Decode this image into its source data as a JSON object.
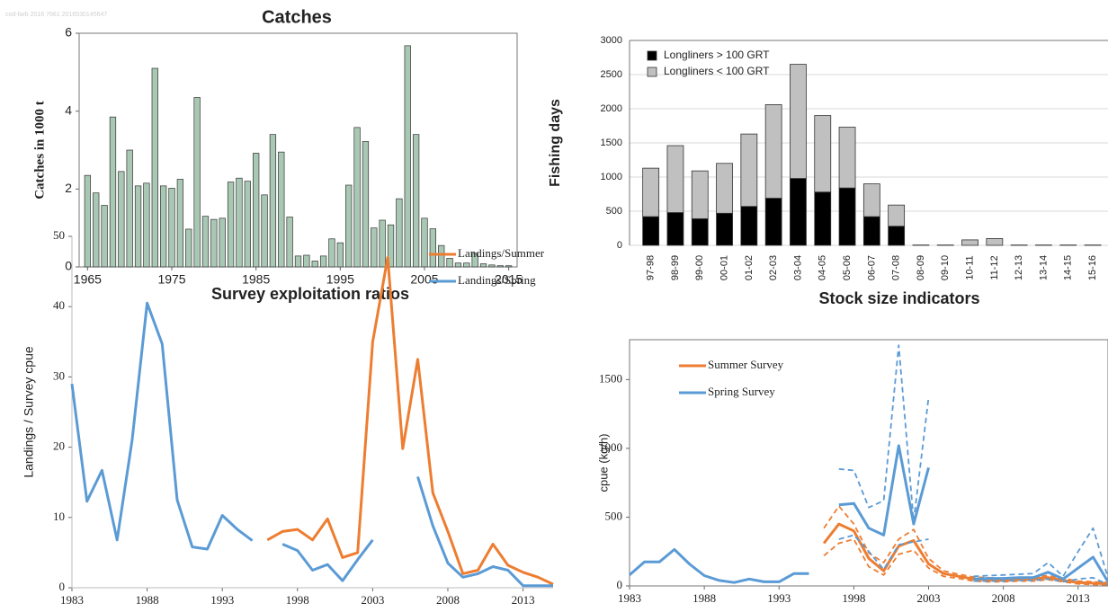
{
  "watermark": "cod-farb 2016 7661 2016530145647",
  "chart_data": [
    {
      "type": "bar",
      "title": "Catches",
      "y_label": "Catches in 1000 t",
      "x": [
        1965,
        1966,
        1967,
        1968,
        1969,
        1970,
        1971,
        1972,
        1973,
        1974,
        1975,
        1976,
        1977,
        1978,
        1979,
        1980,
        1981,
        1982,
        1983,
        1984,
        1985,
        1986,
        1987,
        1988,
        1989,
        1990,
        1991,
        1992,
        1993,
        1994,
        1995,
        1996,
        1997,
        1998,
        1999,
        2000,
        2001,
        2002,
        2003,
        2004,
        2005,
        2006,
        2007,
        2008,
        2009,
        2010,
        2011,
        2012,
        2013,
        2014,
        2015
      ],
      "values": [
        2.35,
        1.9,
        1.58,
        3.85,
        2.45,
        3.0,
        2.08,
        2.15,
        5.1,
        2.08,
        2.02,
        2.25,
        0.97,
        4.35,
        1.3,
        1.22,
        1.25,
        2.18,
        2.28,
        2.2,
        2.92,
        1.85,
        3.4,
        2.95,
        1.28,
        0.28,
        0.3,
        0.15,
        0.28,
        0.72,
        0.62,
        2.1,
        3.58,
        3.22,
        1.0,
        1.2,
        1.08,
        1.75,
        5.68,
        3.4,
        1.25,
        0.98,
        0.55,
        0.22,
        0.1,
        0.1,
        0.35,
        0.08,
        0.05,
        0.03,
        0.03
      ],
      "color": "#a8c8b4",
      "xlim": [
        1964,
        2016
      ],
      "xticks": [
        1965,
        1975,
        1985,
        1995,
        2005,
        2015
      ],
      "ylim": [
        0,
        6
      ],
      "yticks": [
        0,
        2,
        4,
        6
      ],
      "grid": false
    },
    {
      "type": "bar",
      "stacked": true,
      "y_label": "Fishing days",
      "categories": [
        "97-98",
        "98-99",
        "99-00",
        "00-01",
        "01-02",
        "02-03",
        "03-04",
        "04-05",
        "05-06",
        "06-07",
        "07-08",
        "08-09",
        "09-10",
        "10-11",
        "11-12",
        "12-13",
        "13-14",
        "14-15",
        "15-16"
      ],
      "series": [
        {
          "name": "Longliners > 100 GRT",
          "color": "#000000",
          "values": [
            420,
            480,
            390,
            470,
            570,
            690,
            980,
            780,
            840,
            420,
            280,
            0,
            0,
            0,
            0,
            0,
            0,
            0,
            0
          ]
        },
        {
          "name": "Longliners < 100 GRT",
          "color": "#c0c0c0",
          "values": [
            710,
            980,
            700,
            730,
            1060,
            1370,
            1670,
            1120,
            890,
            480,
            310,
            5,
            5,
            80,
            100,
            5,
            5,
            5,
            5
          ]
        }
      ],
      "ylim": [
        0,
        3000
      ],
      "yticks": [
        0,
        500,
        1000,
        1500,
        2000,
        2500,
        3000
      ],
      "grid": true,
      "legend": "upper left"
    },
    {
      "type": "line",
      "title": "Survey exploitation ratios",
      "y_label": "Landings / Survey cpue",
      "x": [
        1983,
        1984,
        1985,
        1986,
        1987,
        1988,
        1989,
        1990,
        1991,
        1992,
        1993,
        1994,
        1995,
        1996,
        1997,
        1998,
        1999,
        2000,
        2001,
        2002,
        2003,
        2004,
        2005,
        2006,
        2007,
        2008,
        2009,
        2010,
        2011,
        2012,
        2013,
        2014,
        2015
      ],
      "series": [
        {
          "name": "Landings/Summer",
          "color": "#ed7d31",
          "values": [
            null,
            null,
            null,
            null,
            null,
            null,
            null,
            null,
            null,
            null,
            null,
            null,
            null,
            6.8,
            8.0,
            8.3,
            6.8,
            9.8,
            4.3,
            5.0,
            35,
            47,
            19.8,
            32.5,
            13.5,
            8.0,
            2.0,
            2.5,
            6.2,
            3.2,
            2.2,
            1.5,
            0.5
          ]
        },
        {
          "name": "Landings/Spring",
          "color": "#5b9bd5",
          "values": [
            29,
            12.3,
            16.7,
            6.8,
            21,
            40.5,
            34.7,
            12.5,
            5.8,
            5.5,
            10.3,
            8.3,
            6.7,
            null,
            6.2,
            5.3,
            2.5,
            3.3,
            1.0,
            4.0,
            6.8,
            null,
            null,
            15.8,
            8.8,
            3.5,
            1.5,
            2.0,
            3.0,
            2.5,
            0.3,
            0.3,
            0.3
          ]
        }
      ],
      "xlim": [
        1983,
        2015
      ],
      "xticks": [
        1983,
        1988,
        1993,
        1998,
        2003,
        2008,
        2013
      ],
      "ylim": [
        0,
        50
      ],
      "yticks": [
        0,
        10,
        20,
        30,
        40,
        50
      ],
      "grid": false,
      "legend": "upper right"
    },
    {
      "type": "line",
      "title": "Stock size indicators",
      "y_label": "cpue (kg/h)",
      "x": [
        1983,
        1984,
        1985,
        1986,
        1987,
        1988,
        1989,
        1990,
        1991,
        1992,
        1993,
        1994,
        1995,
        1996,
        1997,
        1998,
        1999,
        2000,
        2001,
        2002,
        2003,
        2004,
        2005,
        2006,
        2007,
        2008,
        2009,
        2010,
        2011,
        2012,
        2013,
        2014,
        2015
      ],
      "series": [
        {
          "name": "Summer Survey",
          "color": "#ed7d31",
          "values": [
            null,
            null,
            null,
            null,
            null,
            null,
            null,
            null,
            null,
            null,
            null,
            null,
            null,
            310,
            450,
            400,
            200,
            110,
            290,
            330,
            160,
            90,
            70,
            50,
            45,
            40,
            45,
            50,
            60,
            40,
            25,
            20,
            15
          ]
        },
        {
          "color": "#ed7d31",
          "linestyle": "dashed",
          "values": [
            null,
            null,
            null,
            null,
            null,
            null,
            null,
            null,
            null,
            null,
            null,
            null,
            null,
            420,
            580,
            450,
            240,
            170,
            340,
            410,
            200,
            110,
            85,
            65,
            60,
            55,
            60,
            65,
            75,
            55,
            35,
            30,
            25
          ]
        },
        {
          "color": "#ed7d31",
          "linestyle": "dashed",
          "values": [
            null,
            null,
            null,
            null,
            null,
            null,
            null,
            null,
            null,
            null,
            null,
            null,
            null,
            220,
            310,
            340,
            140,
            80,
            230,
            260,
            130,
            70,
            55,
            35,
            30,
            30,
            35,
            35,
            45,
            30,
            15,
            10,
            8
          ]
        },
        {
          "name": "Spring Survey",
          "color": "#5b9bd5",
          "values": [
            80,
            175,
            175,
            265,
            160,
            75,
            40,
            25,
            50,
            30,
            30,
            90,
            90,
            null,
            590,
            600,
            420,
            370,
            1020,
            450,
            860,
            null,
            null,
            50,
            55,
            55,
            60,
            60,
            100,
            50,
            130,
            210,
            30
          ]
        },
        {
          "color": "#5b9bd5",
          "linestyle": "dashed",
          "values": [
            null,
            null,
            null,
            null,
            null,
            null,
            null,
            null,
            null,
            null,
            null,
            null,
            null,
            null,
            850,
            840,
            570,
            620,
            1750,
            470,
            1370,
            null,
            null,
            70,
            75,
            80,
            85,
            90,
            170,
            70,
            250,
            420,
            60
          ]
        },
        {
          "color": "#5b9bd5",
          "linestyle": "dashed",
          "values": [
            null,
            null,
            null,
            null,
            null,
            null,
            null,
            null,
            null,
            null,
            null,
            null,
            null,
            null,
            340,
            370,
            250,
            120,
            300,
            320,
            340,
            null,
            null,
            35,
            35,
            35,
            40,
            40,
            50,
            30,
            50,
            60,
            10
          ]
        }
      ],
      "xlim": [
        1983,
        2015
      ],
      "xticks": [
        1983,
        1988,
        1993,
        1998,
        2003,
        2008,
        2013
      ],
      "ylim": [
        0,
        1790
      ],
      "yticks": [
        0,
        500,
        1000,
        1500
      ],
      "grid": false,
      "legend": "upper left"
    }
  ]
}
